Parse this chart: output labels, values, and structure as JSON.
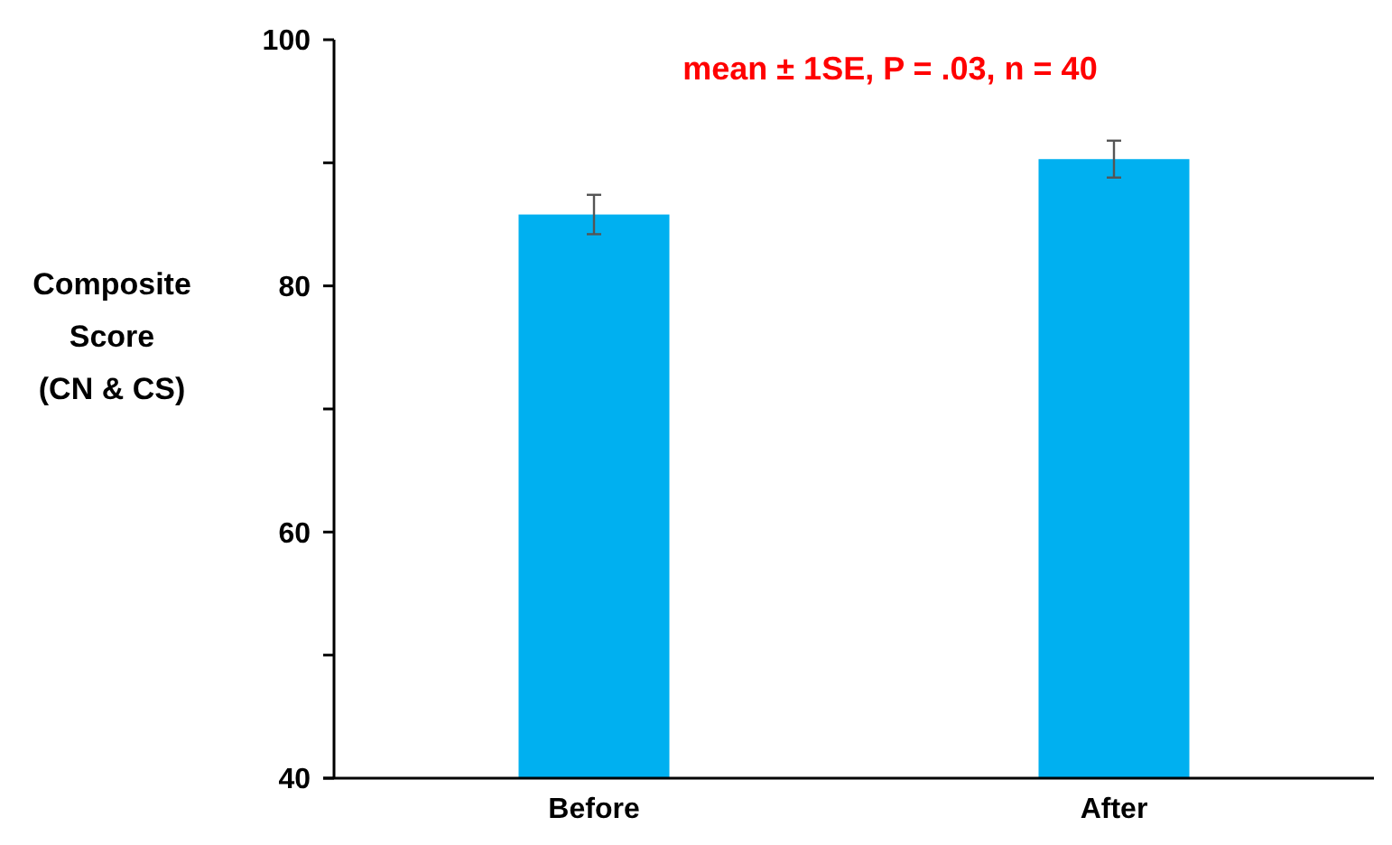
{
  "chart_data": {
    "type": "bar",
    "ylabel": "Composite\nScore\n(CN & CS)",
    "annotations": [
      "mean ± 1SE, P = .03, n = 40"
    ],
    "categories": [
      "Before",
      "After"
    ],
    "values": [
      85.8,
      90.3
    ],
    "errors": [
      1.6,
      1.5
    ],
    "color": "#00b0f0",
    "ylim": [
      40,
      100
    ],
    "yticks": [
      40,
      {
        "value": 50,
        "label": null
      },
      60,
      {
        "value": 70,
        "label": null
      },
      80,
      {
        "value": 90,
        "label": null
      },
      100
    ],
    "grid": false
  }
}
